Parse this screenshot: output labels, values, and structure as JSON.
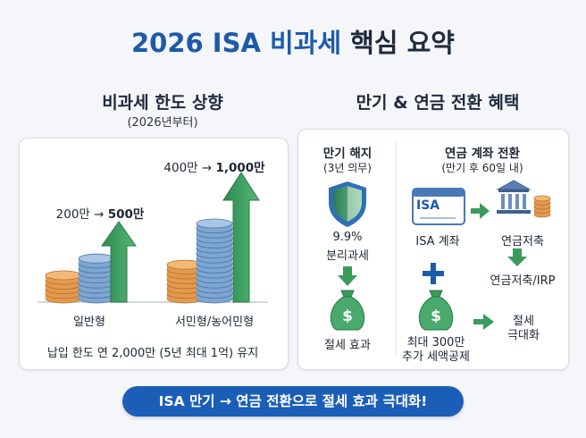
{
  "title": {
    "part1": "2026 ISA 비과세",
    "part2": "핵심 요약"
  },
  "left_section": {
    "title": "비과세 한도 상향",
    "subtitle": "(2026년부터)",
    "general": {
      "change_from": "200만 →",
      "change_to": "500만",
      "label": "일반형"
    },
    "low_income": {
      "change_from": "400만 →",
      "change_to": "1,000만",
      "label": "서민형/농어민형"
    },
    "footer": "납입 한도 연 2,000만 (5년 최대 1억) 유지"
  },
  "right_section": {
    "title": "만기 & 연금 전환 혜택",
    "maturity": {
      "title": "만기 해지",
      "subtitle": "(3년 의무)",
      "tax_rate": "9.9%",
      "tax_type": "분리과세",
      "result": "절세 효과"
    },
    "pension": {
      "title": "연금 계좌 전환",
      "subtitle": "(만기 후 60일 내)",
      "isa_card": "ISA",
      "isa_account": "ISA 계좌",
      "pension_savings": "연금저축",
      "pension_irp": "연금저축/IRP",
      "credit_line1": "최대 300만",
      "credit_line2": "추가 세액공제",
      "result_line1": "절세",
      "result_line2": "극대화"
    }
  },
  "banner": "ISA 만기 → 연금 전환으로 절세 효과 극대화!",
  "colors": {
    "title_blue": "#1e5aa8",
    "arrow_green": "#3a9b5c",
    "coin_orange": "#e9a25a",
    "coin_blue": "#7ea6d3",
    "banner_blue": "#1b5eb8"
  },
  "icons": [
    "shield-icon",
    "money-bag-icon",
    "isa-card-icon",
    "bank-icon",
    "coin-stack-icon",
    "plus-icon",
    "arrow-right-icon",
    "arrow-down-icon"
  ]
}
